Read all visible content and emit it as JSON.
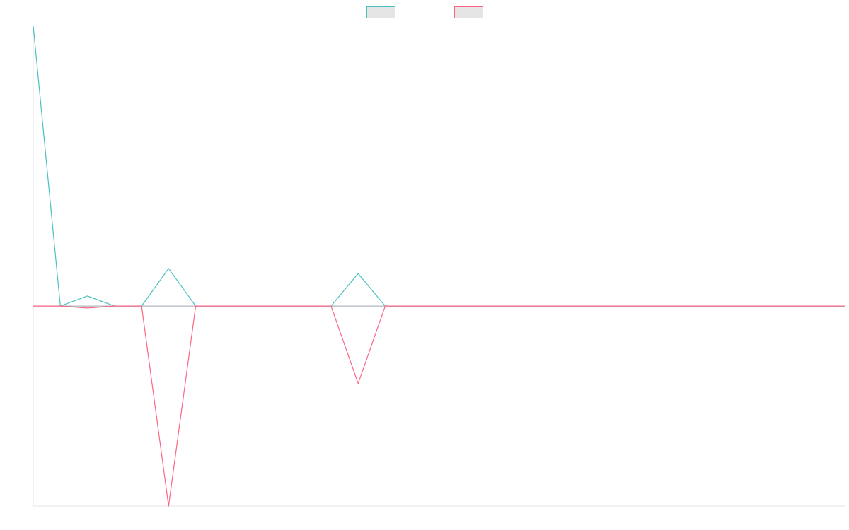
{
  "chart_data": {
    "type": "line",
    "title": "",
    "xlabel": "",
    "ylabel": "",
    "legend": {
      "placement": "top-center",
      "show_labels": false
    },
    "grid": false,
    "x": [
      0,
      1,
      2,
      3,
      4,
      5,
      6,
      7,
      8,
      9,
      10,
      11,
      12,
      13,
      14,
      15,
      16,
      17,
      18,
      19,
      20,
      21,
      22,
      23,
      24,
      25,
      26,
      27,
      28,
      29,
      30
    ],
    "ylim": [
      -400,
      560
    ],
    "series": [
      {
        "key": "series_a",
        "color": "#4bc0c0",
        "swatch_fill": "#e5e5e5",
        "values": [
          560,
          0,
          20,
          0,
          0,
          75,
          0,
          0,
          0,
          0,
          0,
          0,
          65,
          0,
          0,
          0,
          0,
          0,
          0,
          0,
          0,
          0,
          0,
          0,
          0,
          0,
          0,
          0,
          0,
          0,
          0
        ]
      },
      {
        "key": "series_b",
        "color": "#ff6384",
        "swatch_fill": "#e5e5e5",
        "values": [
          0,
          0,
          -4,
          0,
          0,
          -400,
          0,
          0,
          0,
          0,
          0,
          0,
          -155,
          0,
          0,
          0,
          0,
          0,
          0,
          0,
          0,
          0,
          0,
          0,
          0,
          0,
          0,
          0,
          0,
          0,
          0
        ]
      }
    ]
  }
}
